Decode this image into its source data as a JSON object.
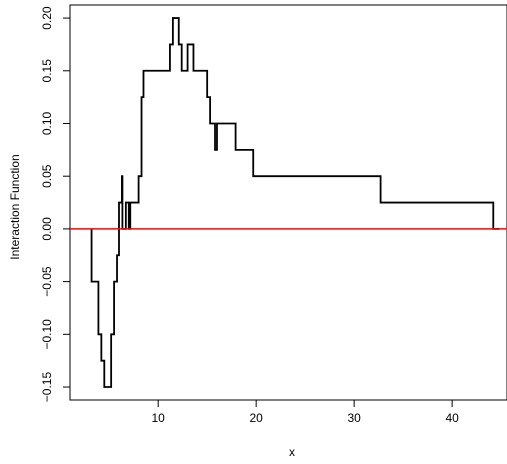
{
  "chart_data": {
    "type": "line",
    "title": "",
    "xlabel": "x",
    "ylabel": "Interaction Function",
    "xlim": [
      1.0,
      45.6
    ],
    "ylim": [
      -0.1623,
      0.2124
    ],
    "x_ticks": [
      10,
      20,
      30,
      40
    ],
    "y_ticks": [
      -0.15,
      -0.1,
      -0.05,
      0.0,
      0.05,
      0.1,
      0.15,
      0.2
    ],
    "x_tick_labels": [
      "10",
      "20",
      "30",
      "40"
    ],
    "y_tick_labels": [
      "−0.15",
      "−0.10",
      "−0.05",
      "0.00",
      "0.05",
      "0.10",
      "0.15",
      "0.20"
    ],
    "grid": false,
    "legend": "none",
    "series": [
      {
        "name": "",
        "style": "step",
        "color": "#000000",
        "points": [
          [
            3.2,
            0.0
          ],
          [
            3.2,
            -0.05
          ],
          [
            3.9,
            -0.05
          ],
          [
            3.9,
            -0.1
          ],
          [
            4.2,
            -0.1
          ],
          [
            4.2,
            -0.125
          ],
          [
            4.5,
            -0.125
          ],
          [
            4.5,
            -0.15
          ],
          [
            5.2,
            -0.15
          ],
          [
            5.2,
            -0.1
          ],
          [
            5.5,
            -0.1
          ],
          [
            5.5,
            -0.05
          ],
          [
            5.8,
            -0.05
          ],
          [
            5.8,
            -0.025
          ],
          [
            6.0,
            -0.025
          ],
          [
            6.0,
            0.025
          ],
          [
            6.3,
            0.025
          ],
          [
            6.3,
            0.05
          ],
          [
            6.35,
            0.05
          ],
          [
            6.35,
            0.0
          ],
          [
            6.7,
            0.0
          ],
          [
            6.7,
            0.025
          ],
          [
            7.0,
            0.025
          ],
          [
            7.0,
            0.0
          ],
          [
            7.15,
            0.0
          ],
          [
            7.15,
            0.025
          ],
          [
            8.0,
            0.025
          ],
          [
            8.0,
            0.05
          ],
          [
            8.3,
            0.05
          ],
          [
            8.3,
            0.125
          ],
          [
            8.5,
            0.125
          ],
          [
            8.5,
            0.15
          ],
          [
            11.2,
            0.15
          ],
          [
            11.2,
            0.175
          ],
          [
            11.5,
            0.175
          ],
          [
            11.5,
            0.2
          ],
          [
            12.1,
            0.2
          ],
          [
            12.1,
            0.175
          ],
          [
            12.4,
            0.175
          ],
          [
            12.4,
            0.15
          ],
          [
            13.0,
            0.15
          ],
          [
            13.0,
            0.175
          ],
          [
            13.6,
            0.175
          ],
          [
            13.6,
            0.15
          ],
          [
            15.0,
            0.15
          ],
          [
            15.0,
            0.125
          ],
          [
            15.3,
            0.125
          ],
          [
            15.3,
            0.1
          ],
          [
            15.8,
            0.1
          ],
          [
            15.8,
            0.075
          ],
          [
            16.0,
            0.075
          ],
          [
            16.0,
            0.1
          ],
          [
            17.9,
            0.1
          ],
          [
            17.9,
            0.075
          ],
          [
            19.7,
            0.075
          ],
          [
            19.7,
            0.05
          ],
          [
            32.7,
            0.05
          ],
          [
            32.7,
            0.025
          ],
          [
            44.2,
            0.025
          ],
          [
            44.2,
            0.0
          ],
          [
            44.8,
            0.0
          ]
        ]
      }
    ],
    "reference_line": {
      "y": 0.0,
      "color": "#ff0000"
    },
    "colors": {
      "series": "#000000",
      "reference": "#ff0000",
      "axes": "#000000"
    }
  }
}
